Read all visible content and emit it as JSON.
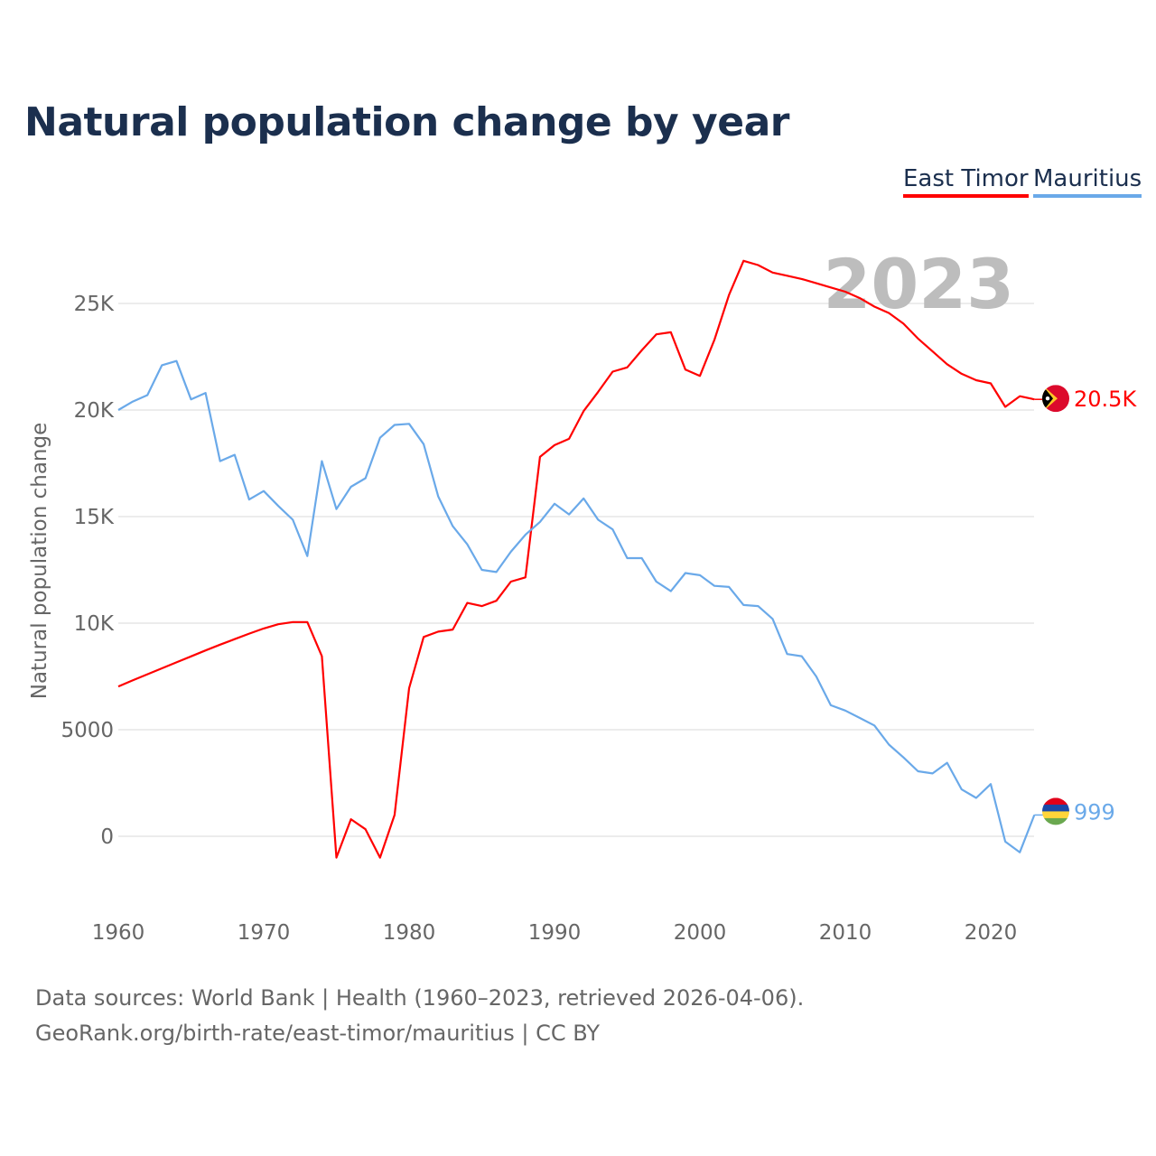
{
  "chart_data": {
    "type": "line",
    "title": "Natural population change by year",
    "ylabel": "Natural population change",
    "xlabel": "",
    "year_watermark": "2023",
    "xlim": [
      1960,
      2023
    ],
    "ylim": [
      -2500,
      28000
    ],
    "x_ticks": [
      1960,
      1970,
      1980,
      1990,
      2000,
      2010,
      2020
    ],
    "y_ticks": [
      {
        "v": 0,
        "label": "0"
      },
      {
        "v": 5000,
        "label": "5000"
      },
      {
        "v": 10000,
        "label": "10K"
      },
      {
        "v": 15000,
        "label": "15K"
      },
      {
        "v": 20000,
        "label": "20K"
      },
      {
        "v": 25000,
        "label": "25K"
      }
    ],
    "grid": true,
    "legend_position": "top-right",
    "x": [
      1960,
      1961,
      1962,
      1963,
      1964,
      1965,
      1966,
      1967,
      1968,
      1969,
      1970,
      1971,
      1972,
      1973,
      1974,
      1975,
      1976,
      1977,
      1978,
      1979,
      1980,
      1981,
      1982,
      1983,
      1984,
      1985,
      1986,
      1987,
      1988,
      1989,
      1990,
      1991,
      1992,
      1993,
      1994,
      1995,
      1996,
      1997,
      1998,
      1999,
      2000,
      2001,
      2002,
      2003,
      2004,
      2005,
      2006,
      2007,
      2008,
      2009,
      2010,
      2011,
      2012,
      2013,
      2014,
      2015,
      2016,
      2017,
      2018,
      2019,
      2020,
      2021,
      2022,
      2023
    ],
    "series": [
      {
        "name": "East Timor",
        "color": "#ff0000",
        "end_label": "20.5K",
        "flag": "east-timor",
        "values": [
          7030,
          7320,
          7600,
          7880,
          8160,
          8440,
          8720,
          8990,
          9250,
          9510,
          9750,
          9950,
          10050,
          10050,
          8450,
          -1000,
          800,
          330,
          -1000,
          1000,
          6950,
          9350,
          9600,
          9700,
          10950,
          10800,
          11050,
          11950,
          12150,
          17800,
          18350,
          18650,
          19950,
          20850,
          21800,
          22000,
          22800,
          23550,
          23650,
          21900,
          21600,
          23300,
          25400,
          27000,
          26800,
          26450,
          26300,
          26150,
          25950,
          25750,
          25550,
          25250,
          24850,
          24550,
          24050,
          23350,
          22750,
          22150,
          21700,
          21400,
          21250,
          20150,
          20650,
          20500
        ]
      },
      {
        "name": "Mauritius",
        "color": "#6aa9e9",
        "end_label": "999",
        "flag": "mauritius",
        "values": [
          20000,
          20400,
          20700,
          22100,
          22300,
          20500,
          20800,
          17600,
          17900,
          15800,
          16200,
          15500,
          14850,
          13150,
          17600,
          15350,
          16400,
          16800,
          18700,
          19300,
          19350,
          18400,
          15950,
          14550,
          13700,
          12500,
          12400,
          13350,
          14150,
          14750,
          15600,
          15100,
          15850,
          14850,
          14400,
          13050,
          13050,
          11950,
          11500,
          12350,
          12250,
          11750,
          11700,
          10850,
          10800,
          10200,
          8550,
          8450,
          7500,
          6150,
          5900,
          5550,
          5200,
          4300,
          3700,
          3050,
          2950,
          3450,
          2200,
          1800,
          2450,
          -250,
          -750,
          999
        ]
      }
    ]
  },
  "footer": {
    "line1": "Data sources: World Bank | Health (1960–2023, retrieved 2026-04-06).",
    "line2": "GeoRank.org/birth-rate/east-timor/mauritius | CC BY"
  }
}
